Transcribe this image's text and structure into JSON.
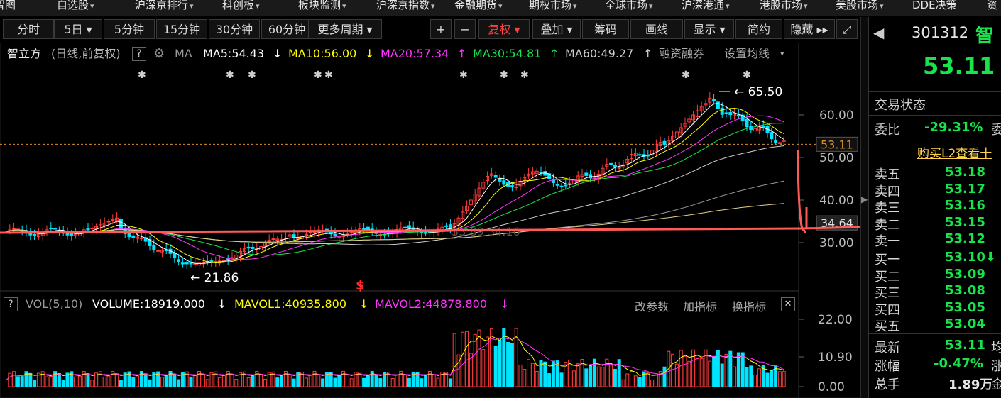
{
  "nav": {
    "items": [
      {
        "label": "智图",
        "arrow": ""
      },
      {
        "label": "自选股",
        "arrow": "▾"
      },
      {
        "label": "沪深京排行",
        "arrow": "▾"
      },
      {
        "label": "科创板",
        "arrow": "▾"
      },
      {
        "label": "板块监测",
        "arrow": "▾"
      },
      {
        "label": "沪深京指数",
        "arrow": "▾"
      },
      {
        "label": "金融期货",
        "arrow": "▾"
      },
      {
        "label": "期权市场",
        "arrow": "▾"
      },
      {
        "label": "全球市场",
        "arrow": "▾"
      },
      {
        "label": "沪深港通",
        "arrow": "▾"
      },
      {
        "label": "港股市场",
        "arrow": "▾"
      },
      {
        "label": "美股市场",
        "arrow": "▾"
      },
      {
        "label": "DDE决策",
        "arrow": ""
      },
      {
        "label": "资",
        "arrow": ""
      }
    ]
  },
  "toolbar": {
    "periods": [
      "分时",
      "5日",
      "5分钟",
      "15分钟",
      "30分钟",
      "60分钟",
      "更多周期"
    ],
    "plus": "+",
    "minus": "−",
    "fuquan": "复权",
    "diejia": "叠加",
    "chouma": "筹码",
    "huaxian": "画线",
    "xianshi": "显示",
    "jianyue": "简约",
    "yincang": "隐藏"
  },
  "main": {
    "stock_name": "智立方",
    "mode": "(日线,前复权)",
    "ma_label": "MA",
    "ma5": "MA5:54.43",
    "ma10": "MA10:56.00",
    "ma20": "MA20:57.34",
    "ma30": "MA30:54.81",
    "ma60": "MA60:49.27",
    "rzrq": "融资融券",
    "set_ma": "设置均线",
    "high_label": "65.50",
    "low_label": "21.86",
    "mid_label": "33.89 34.16",
    "last_price_tag": "53.11",
    "cursor_tag": "34.64",
    "y_ticks": [
      "60.00",
      "50.00",
      "40.00",
      "30.00"
    ]
  },
  "volume": {
    "title": "VOL(5,10)",
    "volume": "VOLUME:18919.000",
    "mavol1": "MAVOL1:40935.800",
    "mavol2": "MAVOL2:44878.800",
    "gaicanshu": "改参数",
    "jiazhibiao": "加指标",
    "huanzhibiao": "换指标",
    "y_ticks": [
      "22.00",
      "10.90",
      "0.00"
    ]
  },
  "right": {
    "code": "301312",
    "name_short": "智",
    "price": "53.11",
    "status": "交易状态",
    "weibi_label": "委比",
    "weibi_val": "-29.31%",
    "weibi_extra": "委",
    "l2": "购买L2查看十",
    "asks": [
      {
        "label": "卖五",
        "price": "53.18"
      },
      {
        "label": "卖四",
        "price": "53.17"
      },
      {
        "label": "卖三",
        "price": "53.16"
      },
      {
        "label": "卖二",
        "price": "53.15"
      },
      {
        "label": "卖一",
        "price": "53.12"
      }
    ],
    "bids": [
      {
        "label": "买一",
        "price": "53.10"
      },
      {
        "label": "买二",
        "price": "53.09"
      },
      {
        "label": "买三",
        "price": "53.08"
      },
      {
        "label": "买四",
        "price": "53.05"
      },
      {
        "label": "买五",
        "price": "53.04"
      }
    ],
    "latest_label": "最新",
    "latest_val": "53.11",
    "latest_extra": "均",
    "change_label": "涨幅",
    "change_val": "-0.47%",
    "change_extra": "涨",
    "total_label": "总手",
    "total_val": "1.89万",
    "total_extra": "金"
  },
  "colors": {
    "up": "#ff3d3d",
    "down": "#00e5ff",
    "ma5": "#ffffff",
    "ma10": "#ffff00",
    "ma20": "#ff33ff",
    "ma30": "#19e34a",
    "ma60": "#cfcfcf",
    "annotation": "#ff5a5a"
  }
}
